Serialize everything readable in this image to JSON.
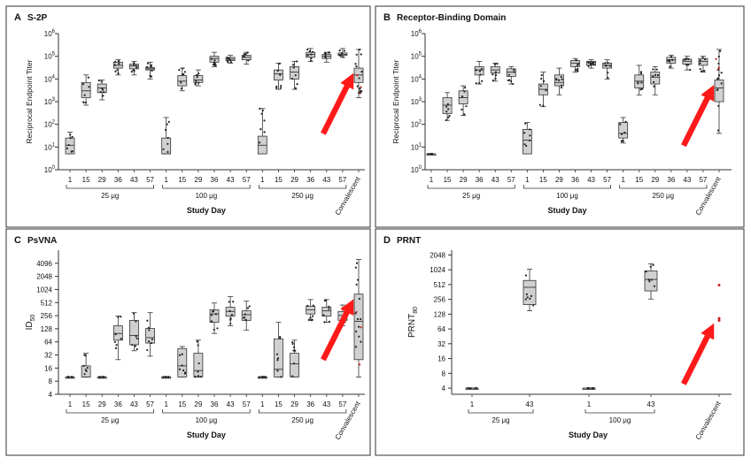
{
  "colors": {
    "box_fill": "#d0d0d0",
    "box_stroke": "#333333",
    "point": "#222222",
    "convalescent_point": "#c81e1e",
    "arrow": "#ff1a1a"
  },
  "icons": [
    "red-arrow-icon"
  ],
  "chart_data": [
    {
      "panel": "A",
      "title": "S-2P",
      "type": "box",
      "ylabel": "Reciprocal Endpoint Titer",
      "xlabel": "Study Day",
      "yscale": "log10",
      "ylim": [
        1,
        1000000
      ],
      "yticks": [
        {
          "v": 1,
          "b": "10",
          "s": "0"
        },
        {
          "v": 10,
          "b": "10",
          "s": "1"
        },
        {
          "v": 100,
          "b": "10",
          "s": "2"
        },
        {
          "v": 1000,
          "b": "10",
          "s": "3"
        },
        {
          "v": 10000,
          "b": "10",
          "s": "4"
        },
        {
          "v": 100000,
          "b": "10",
          "s": "5"
        },
        {
          "v": 1000000,
          "b": "10",
          "s": "6"
        }
      ],
      "categories": [
        "1",
        "15",
        "29",
        "36",
        "43",
        "57",
        "1",
        "15",
        "29",
        "36",
        "43",
        "57",
        "1",
        "15",
        "29",
        "36",
        "43",
        "57",
        "Convalescent"
      ],
      "groups": [
        {
          "label": "25 μg",
          "from": 0,
          "to": 5
        },
        {
          "label": "100 μg",
          "from": 6,
          "to": 11
        },
        {
          "label": "250 μg",
          "from": 12,
          "to": 17
        }
      ],
      "boxes": [
        [
          5,
          5,
          12,
          25,
          45
        ],
        [
          700,
          1500,
          3000,
          7000,
          15000
        ],
        [
          1200,
          2500,
          4000,
          6000,
          9000
        ],
        [
          15000,
          30000,
          40000,
          55000,
          70000
        ],
        [
          15000,
          28000,
          38000,
          45000,
          60000
        ],
        [
          10000,
          25000,
          28000,
          32000,
          55000
        ],
        [
          5,
          5,
          5,
          25,
          200
        ],
        [
          3000,
          5000,
          8000,
          14000,
          30000
        ],
        [
          5000,
          7000,
          9000,
          14000,
          25000
        ],
        [
          35000,
          55000,
          80000,
          100000,
          150000
        ],
        [
          50000,
          65000,
          75000,
          90000,
          110000
        ],
        [
          45000,
          70000,
          90000,
          110000,
          150000
        ],
        [
          5,
          5,
          12,
          30,
          500
        ],
        [
          3500,
          9000,
          17000,
          25000,
          50000
        ],
        [
          3500,
          10000,
          20000,
          35000,
          60000
        ],
        [
          60000,
          90000,
          120000,
          150000,
          220000
        ],
        [
          55000,
          80000,
          100000,
          120000,
          150000
        ],
        [
          90000,
          110000,
          120000,
          140000,
          220000
        ],
        [
          1500,
          7000,
          15000,
          30000,
          200000
        ]
      ],
      "arrow_target": 18
    },
    {
      "panel": "B",
      "title": "Receptor-Binding Domain",
      "type": "box",
      "ylabel": "Reciprocal Endpoint Titer",
      "xlabel": "Study Day",
      "yscale": "log10",
      "ylim": [
        1,
        1000000
      ],
      "yticks": [
        {
          "v": 1,
          "b": "10",
          "s": "0"
        },
        {
          "v": 10,
          "b": "10",
          "s": "1"
        },
        {
          "v": 100,
          "b": "10",
          "s": "2"
        },
        {
          "v": 1000,
          "b": "10",
          "s": "3"
        },
        {
          "v": 10000,
          "b": "10",
          "s": "4"
        },
        {
          "v": 100000,
          "b": "10",
          "s": "5"
        },
        {
          "v": 1000000,
          "b": "10",
          "s": "6"
        }
      ],
      "categories": [
        "1",
        "15",
        "29",
        "36",
        "43",
        "57",
        "1",
        "15",
        "29",
        "36",
        "43",
        "57",
        "1",
        "15",
        "29",
        "36",
        "43",
        "57",
        "Convalescent"
      ],
      "groups": [
        {
          "label": "25 μg",
          "from": 0,
          "to": 5
        },
        {
          "label": "100 μg",
          "from": 6,
          "to": 11
        },
        {
          "label": "250 μg",
          "from": 12,
          "to": 17
        }
      ],
      "boxes": [
        [
          5,
          5,
          5,
          5,
          5
        ],
        [
          150,
          300,
          700,
          1500,
          2500
        ],
        [
          250,
          800,
          1500,
          3000,
          5000
        ],
        [
          6000,
          15000,
          25000,
          35000,
          60000
        ],
        [
          8000,
          18000,
          25000,
          35000,
          50000
        ],
        [
          6000,
          13000,
          20000,
          28000,
          35000
        ],
        [
          5,
          5,
          20,
          60,
          120
        ],
        [
          600,
          2000,
          3500,
          6000,
          20000
        ],
        [
          2000,
          5000,
          7000,
          15000,
          30000
        ],
        [
          20000,
          35000,
          50000,
          65000,
          80000
        ],
        [
          30000,
          40000,
          55000,
          60000,
          70000
        ],
        [
          10000,
          30000,
          40000,
          50000,
          70000
        ],
        [
          15,
          25,
          40,
          120,
          200
        ],
        [
          2000,
          4000,
          8000,
          15000,
          40000
        ],
        [
          2000,
          6000,
          12000,
          20000,
          35000
        ],
        [
          30000,
          50000,
          70000,
          90000,
          110000
        ],
        [
          25000,
          45000,
          60000,
          75000,
          100000
        ],
        [
          20000,
          40000,
          60000,
          80000,
          100000
        ],
        [
          40,
          1000,
          4000,
          9000,
          200000
        ]
      ],
      "arrow_target": 18
    },
    {
      "panel": "C",
      "title": "PsVNA",
      "type": "box",
      "ylabel": "ID50",
      "xlabel": "Study Day",
      "yscale": "log2",
      "ylim": [
        4,
        8192
      ],
      "yticks": [
        {
          "v": 4,
          "b": "4"
        },
        {
          "v": 8,
          "b": "8"
        },
        {
          "v": 16,
          "b": "16"
        },
        {
          "v": 32,
          "b": "32"
        },
        {
          "v": 64,
          "b": "64"
        },
        {
          "v": 128,
          "b": "128"
        },
        {
          "v": 256,
          "b": "256"
        },
        {
          "v": 512,
          "b": "512"
        },
        {
          "v": 1024,
          "b": "1024"
        },
        {
          "v": 2048,
          "b": "2048"
        },
        {
          "v": 4096,
          "b": "4096"
        }
      ],
      "categories": [
        "1",
        "15",
        "29",
        "36",
        "43",
        "57",
        "1",
        "15",
        "29",
        "36",
        "43",
        "57",
        "1",
        "15",
        "29",
        "36",
        "43",
        "57",
        "Convalescent"
      ],
      "groups": [
        {
          "label": "25 μg",
          "from": 0,
          "to": 5
        },
        {
          "label": "100 μg",
          "from": 6,
          "to": 11
        },
        {
          "label": "250 μg",
          "from": 12,
          "to": 17
        }
      ],
      "boxes": [
        [
          10,
          10,
          10,
          10,
          10
        ],
        [
          10,
          10,
          10,
          18,
          35
        ],
        [
          10,
          10,
          10,
          10,
          10
        ],
        [
          25,
          70,
          100,
          150,
          250
        ],
        [
          40,
          55,
          90,
          200,
          300
        ],
        [
          30,
          60,
          80,
          130,
          300
        ],
        [
          10,
          10,
          10,
          10,
          10
        ],
        [
          10,
          10,
          18,
          45,
          50
        ],
        [
          10,
          10,
          14,
          35,
          70
        ],
        [
          100,
          180,
          280,
          350,
          500
        ],
        [
          150,
          250,
          320,
          400,
          700
        ],
        [
          120,
          200,
          270,
          330,
          550
        ],
        [
          10,
          10,
          10,
          10,
          10
        ],
        [
          10,
          10,
          15,
          75,
          180
        ],
        [
          10,
          10,
          20,
          35,
          70
        ],
        [
          200,
          280,
          350,
          420,
          600
        ],
        [
          180,
          250,
          330,
          400,
          600
        ],
        [
          150,
          200,
          260,
          320,
          450
        ],
        [
          10,
          25,
          190,
          800,
          5000
        ]
      ],
      "arrow_target": 18
    },
    {
      "panel": "D",
      "title": "PRNT",
      "type": "box",
      "ylabel": "PRNT80",
      "xlabel": "Study Day",
      "yscale": "log2",
      "ylim": [
        3,
        2560
      ],
      "yticks": [
        {
          "v": 4,
          "b": "4"
        },
        {
          "v": 8,
          "b": "8"
        },
        {
          "v": 16,
          "b": "16"
        },
        {
          "v": 32,
          "b": "32"
        },
        {
          "v": 64,
          "b": "64"
        },
        {
          "v": 128,
          "b": "128"
        },
        {
          "v": 256,
          "b": "256"
        },
        {
          "v": 512,
          "b": "512"
        },
        {
          "v": 1024,
          "b": "1024"
        },
        {
          "v": 2048,
          "b": "2048"
        }
      ],
      "categories": [
        "1",
        "43",
        "1",
        "43",
        "Convalescent"
      ],
      "groups": [
        {
          "label": "25 μg",
          "from": 0,
          "to": 1
        },
        {
          "label": "100 μg",
          "from": 2,
          "to": 3
        }
      ],
      "boxes": [
        [
          4,
          4,
          4,
          4,
          4
        ],
        [
          150,
          200,
          450,
          620,
          1050
        ],
        [
          4,
          4,
          4,
          4,
          4
        ],
        [
          260,
          380,
          650,
          970,
          1350
        ],
        null
      ],
      "convalescent_points": [
        500,
        105,
        95
      ],
      "arrow_target": 4
    }
  ]
}
